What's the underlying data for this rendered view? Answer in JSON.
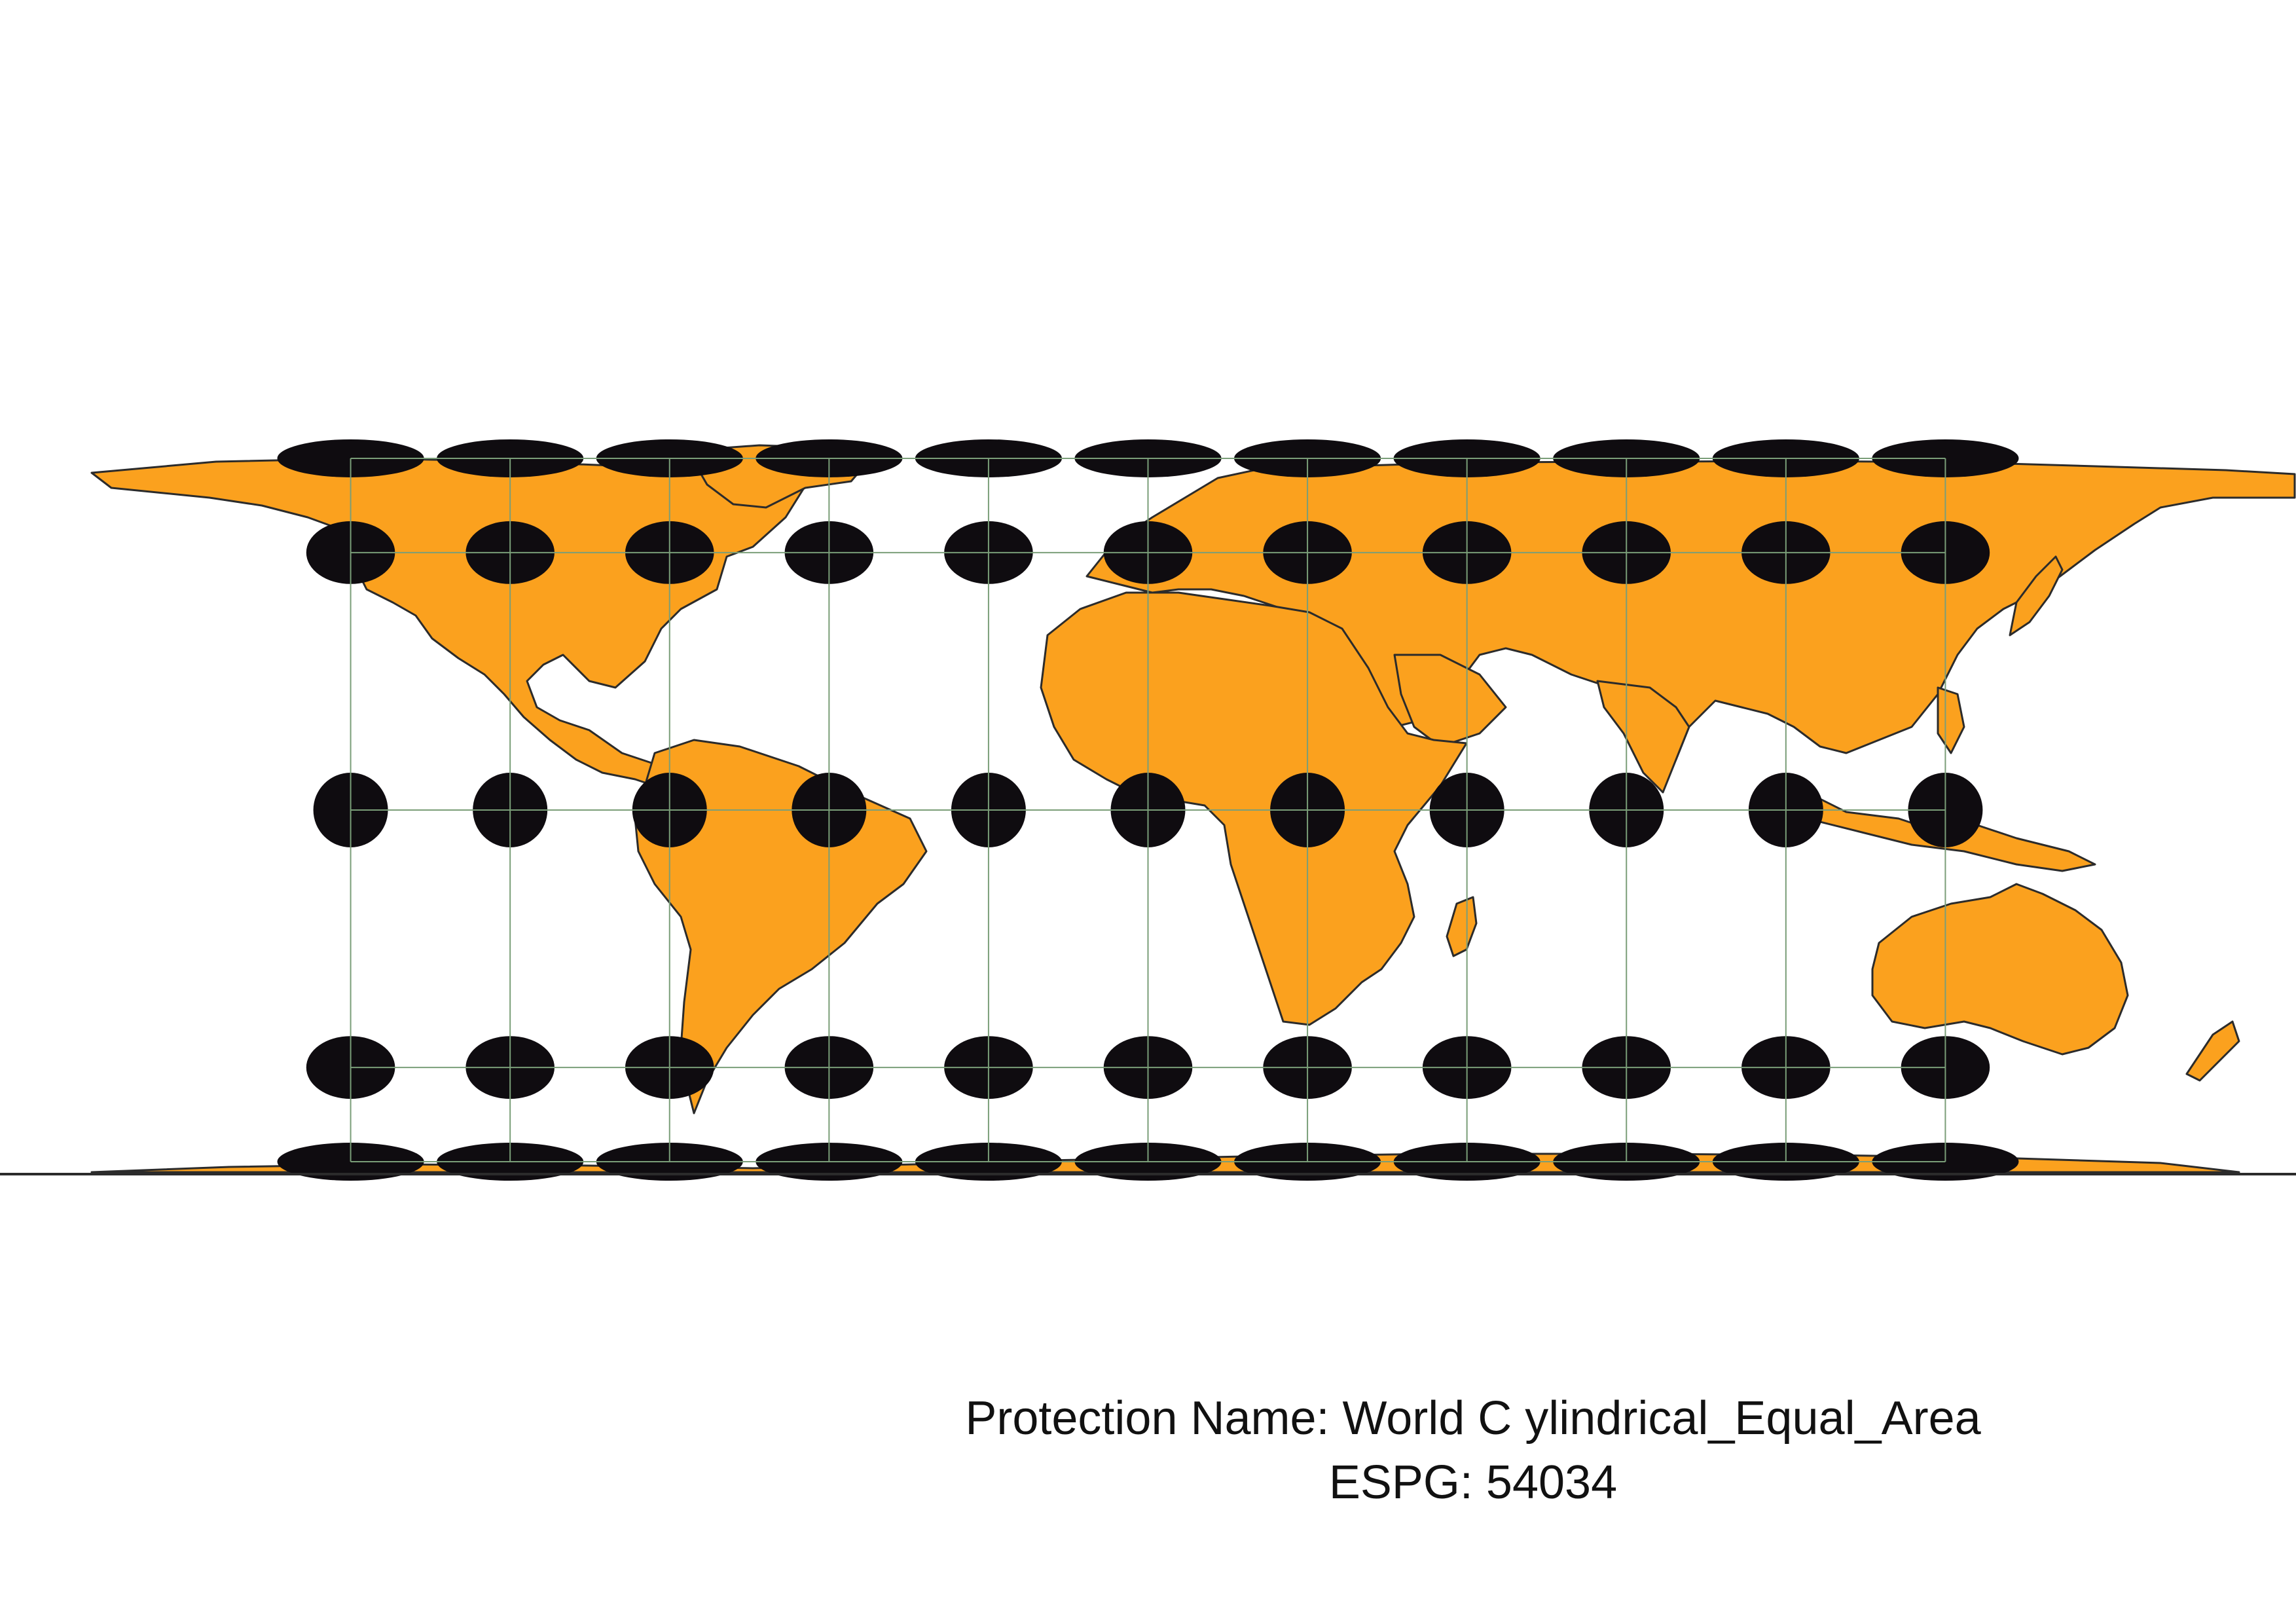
{
  "caption": {
    "projection_line": "Protection Name: World C ylindrical_Equal_Area",
    "epsg_line": "ESPG: 54034"
  },
  "map": {
    "projection": "World_Cylindrical_Equal_Area",
    "land_color": "#FBA11E",
    "border_color": "#2b2b2b",
    "graticule_color": "#7a9e78",
    "indicatrix_color": "#0f0c10",
    "graticule_longitudes": [
      -150,
      -120,
      -90,
      -60,
      -30,
      0,
      30,
      60,
      90,
      120,
      150
    ],
    "graticule_latitudes": [
      -75,
      -45,
      0,
      45,
      75
    ],
    "indicatrix_longitudes": [
      -150,
      -120,
      -90,
      -60,
      -30,
      0,
      30,
      60,
      90,
      120,
      150
    ],
    "indicatrix_latitudes": [
      75,
      45,
      0,
      -45,
      -75
    ]
  }
}
